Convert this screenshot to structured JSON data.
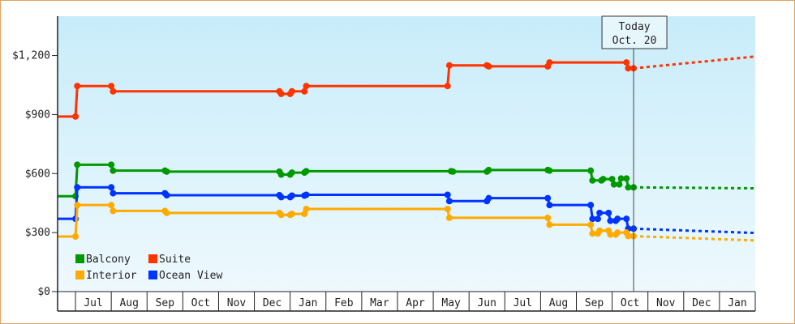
{
  "chart_data": {
    "type": "line",
    "step": true,
    "y_axis": {
      "ticks": [
        {
          "value": 0,
          "label": "$0"
        },
        {
          "value": 300,
          "label": "$300"
        },
        {
          "value": 600,
          "label": "$600"
        },
        {
          "value": 900,
          "label": "$900"
        },
        {
          "value": 1200,
          "label": "$1,200"
        }
      ],
      "ylim": [
        0,
        1400
      ]
    },
    "x_axis": {
      "months": [
        "Jul",
        "Aug",
        "Sep",
        "Oct",
        "Nov",
        "Dec",
        "Jan",
        "Feb",
        "Mar",
        "Apr",
        "May",
        "Jun",
        "Jul",
        "Aug",
        "Sep",
        "Oct",
        "Nov",
        "Dec",
        "Jan"
      ],
      "xlim": [
        -0.5,
        19.0
      ]
    },
    "today": {
      "lines": [
        "Today",
        "Oct. 20"
      ],
      "x": 15.6
    },
    "legend_position": "bottom-left",
    "series": [
      {
        "name": "Suite",
        "color": "#ff3300",
        "points": [
          [
            -0.5,
            890
          ],
          [
            0.0,
            890
          ],
          [
            0.05,
            1045
          ],
          [
            1.0,
            1045
          ],
          [
            1.05,
            1018
          ],
          [
            5.7,
            1018
          ],
          [
            5.75,
            1005
          ],
          [
            6.0,
            1005
          ],
          [
            6.05,
            1018
          ],
          [
            6.4,
            1018
          ],
          [
            6.45,
            1045
          ],
          [
            10.4,
            1045
          ],
          [
            10.45,
            1150
          ],
          [
            11.5,
            1150
          ],
          [
            11.55,
            1145
          ],
          [
            13.2,
            1145
          ],
          [
            13.25,
            1165
          ],
          [
            15.4,
            1165
          ],
          [
            15.45,
            1135
          ],
          [
            15.6,
            1135
          ]
        ],
        "projection": [
          [
            15.6,
            1135
          ],
          [
            19.0,
            1195
          ]
        ]
      },
      {
        "name": "Balcony",
        "color": "#009900",
        "points": [
          [
            -0.5,
            485
          ],
          [
            0.0,
            485
          ],
          [
            0.05,
            645
          ],
          [
            1.0,
            645
          ],
          [
            1.05,
            615
          ],
          [
            2.5,
            615
          ],
          [
            2.55,
            610
          ],
          [
            5.7,
            610
          ],
          [
            5.75,
            595
          ],
          [
            6.0,
            595
          ],
          [
            6.05,
            605
          ],
          [
            6.4,
            605
          ],
          [
            6.45,
            612
          ],
          [
            10.5,
            612
          ],
          [
            10.55,
            610
          ],
          [
            11.5,
            610
          ],
          [
            11.55,
            618
          ],
          [
            13.2,
            618
          ],
          [
            13.25,
            615
          ],
          [
            14.4,
            615
          ],
          [
            14.45,
            565
          ],
          [
            14.7,
            565
          ],
          [
            14.75,
            572
          ],
          [
            15.0,
            572
          ],
          [
            15.05,
            545
          ],
          [
            15.2,
            545
          ],
          [
            15.25,
            575
          ],
          [
            15.4,
            575
          ],
          [
            15.45,
            530
          ],
          [
            15.6,
            530
          ]
        ],
        "projection": [
          [
            15.6,
            530
          ],
          [
            19.0,
            525
          ]
        ]
      },
      {
        "name": "Ocean View",
        "color": "#0033ff",
        "points": [
          [
            -0.5,
            370
          ],
          [
            0.0,
            370
          ],
          [
            0.05,
            530
          ],
          [
            1.0,
            530
          ],
          [
            1.05,
            500
          ],
          [
            2.5,
            500
          ],
          [
            2.55,
            490
          ],
          [
            5.7,
            490
          ],
          [
            5.75,
            480
          ],
          [
            6.0,
            480
          ],
          [
            6.05,
            488
          ],
          [
            6.4,
            488
          ],
          [
            6.45,
            492
          ],
          [
            10.4,
            492
          ],
          [
            10.45,
            460
          ],
          [
            11.5,
            460
          ],
          [
            11.55,
            475
          ],
          [
            13.2,
            475
          ],
          [
            13.25,
            440
          ],
          [
            14.4,
            440
          ],
          [
            14.45,
            370
          ],
          [
            14.6,
            370
          ],
          [
            14.65,
            400
          ],
          [
            14.9,
            400
          ],
          [
            14.95,
            360
          ],
          [
            15.1,
            360
          ],
          [
            15.15,
            370
          ],
          [
            15.4,
            370
          ],
          [
            15.45,
            320
          ],
          [
            15.6,
            320
          ]
        ],
        "projection": [
          [
            15.6,
            320
          ],
          [
            19.0,
            298
          ]
        ]
      },
      {
        "name": "Interior",
        "color": "#ffaa00",
        "points": [
          [
            -0.5,
            280
          ],
          [
            0.0,
            280
          ],
          [
            0.05,
            440
          ],
          [
            1.0,
            440
          ],
          [
            1.05,
            410
          ],
          [
            2.5,
            410
          ],
          [
            2.55,
            400
          ],
          [
            5.7,
            400
          ],
          [
            5.75,
            390
          ],
          [
            6.0,
            390
          ],
          [
            6.05,
            395
          ],
          [
            6.4,
            395
          ],
          [
            6.45,
            420
          ],
          [
            10.4,
            420
          ],
          [
            10.45,
            375
          ],
          [
            13.2,
            375
          ],
          [
            13.25,
            340
          ],
          [
            14.4,
            340
          ],
          [
            14.45,
            295
          ],
          [
            14.6,
            295
          ],
          [
            14.65,
            310
          ],
          [
            14.9,
            310
          ],
          [
            14.95,
            290
          ],
          [
            15.1,
            290
          ],
          [
            15.15,
            300
          ],
          [
            15.4,
            300
          ],
          [
            15.45,
            282
          ],
          [
            15.6,
            282
          ]
        ],
        "projection": [
          [
            15.6,
            282
          ],
          [
            19.0,
            260
          ]
        ]
      }
    ],
    "legend": [
      {
        "name": "Balcony",
        "color": "#009900"
      },
      {
        "name": "Suite",
        "color": "#ff3300"
      },
      {
        "name": "Interior",
        "color": "#ffaa00"
      },
      {
        "name": "Ocean View",
        "color": "#0033ff"
      }
    ]
  }
}
